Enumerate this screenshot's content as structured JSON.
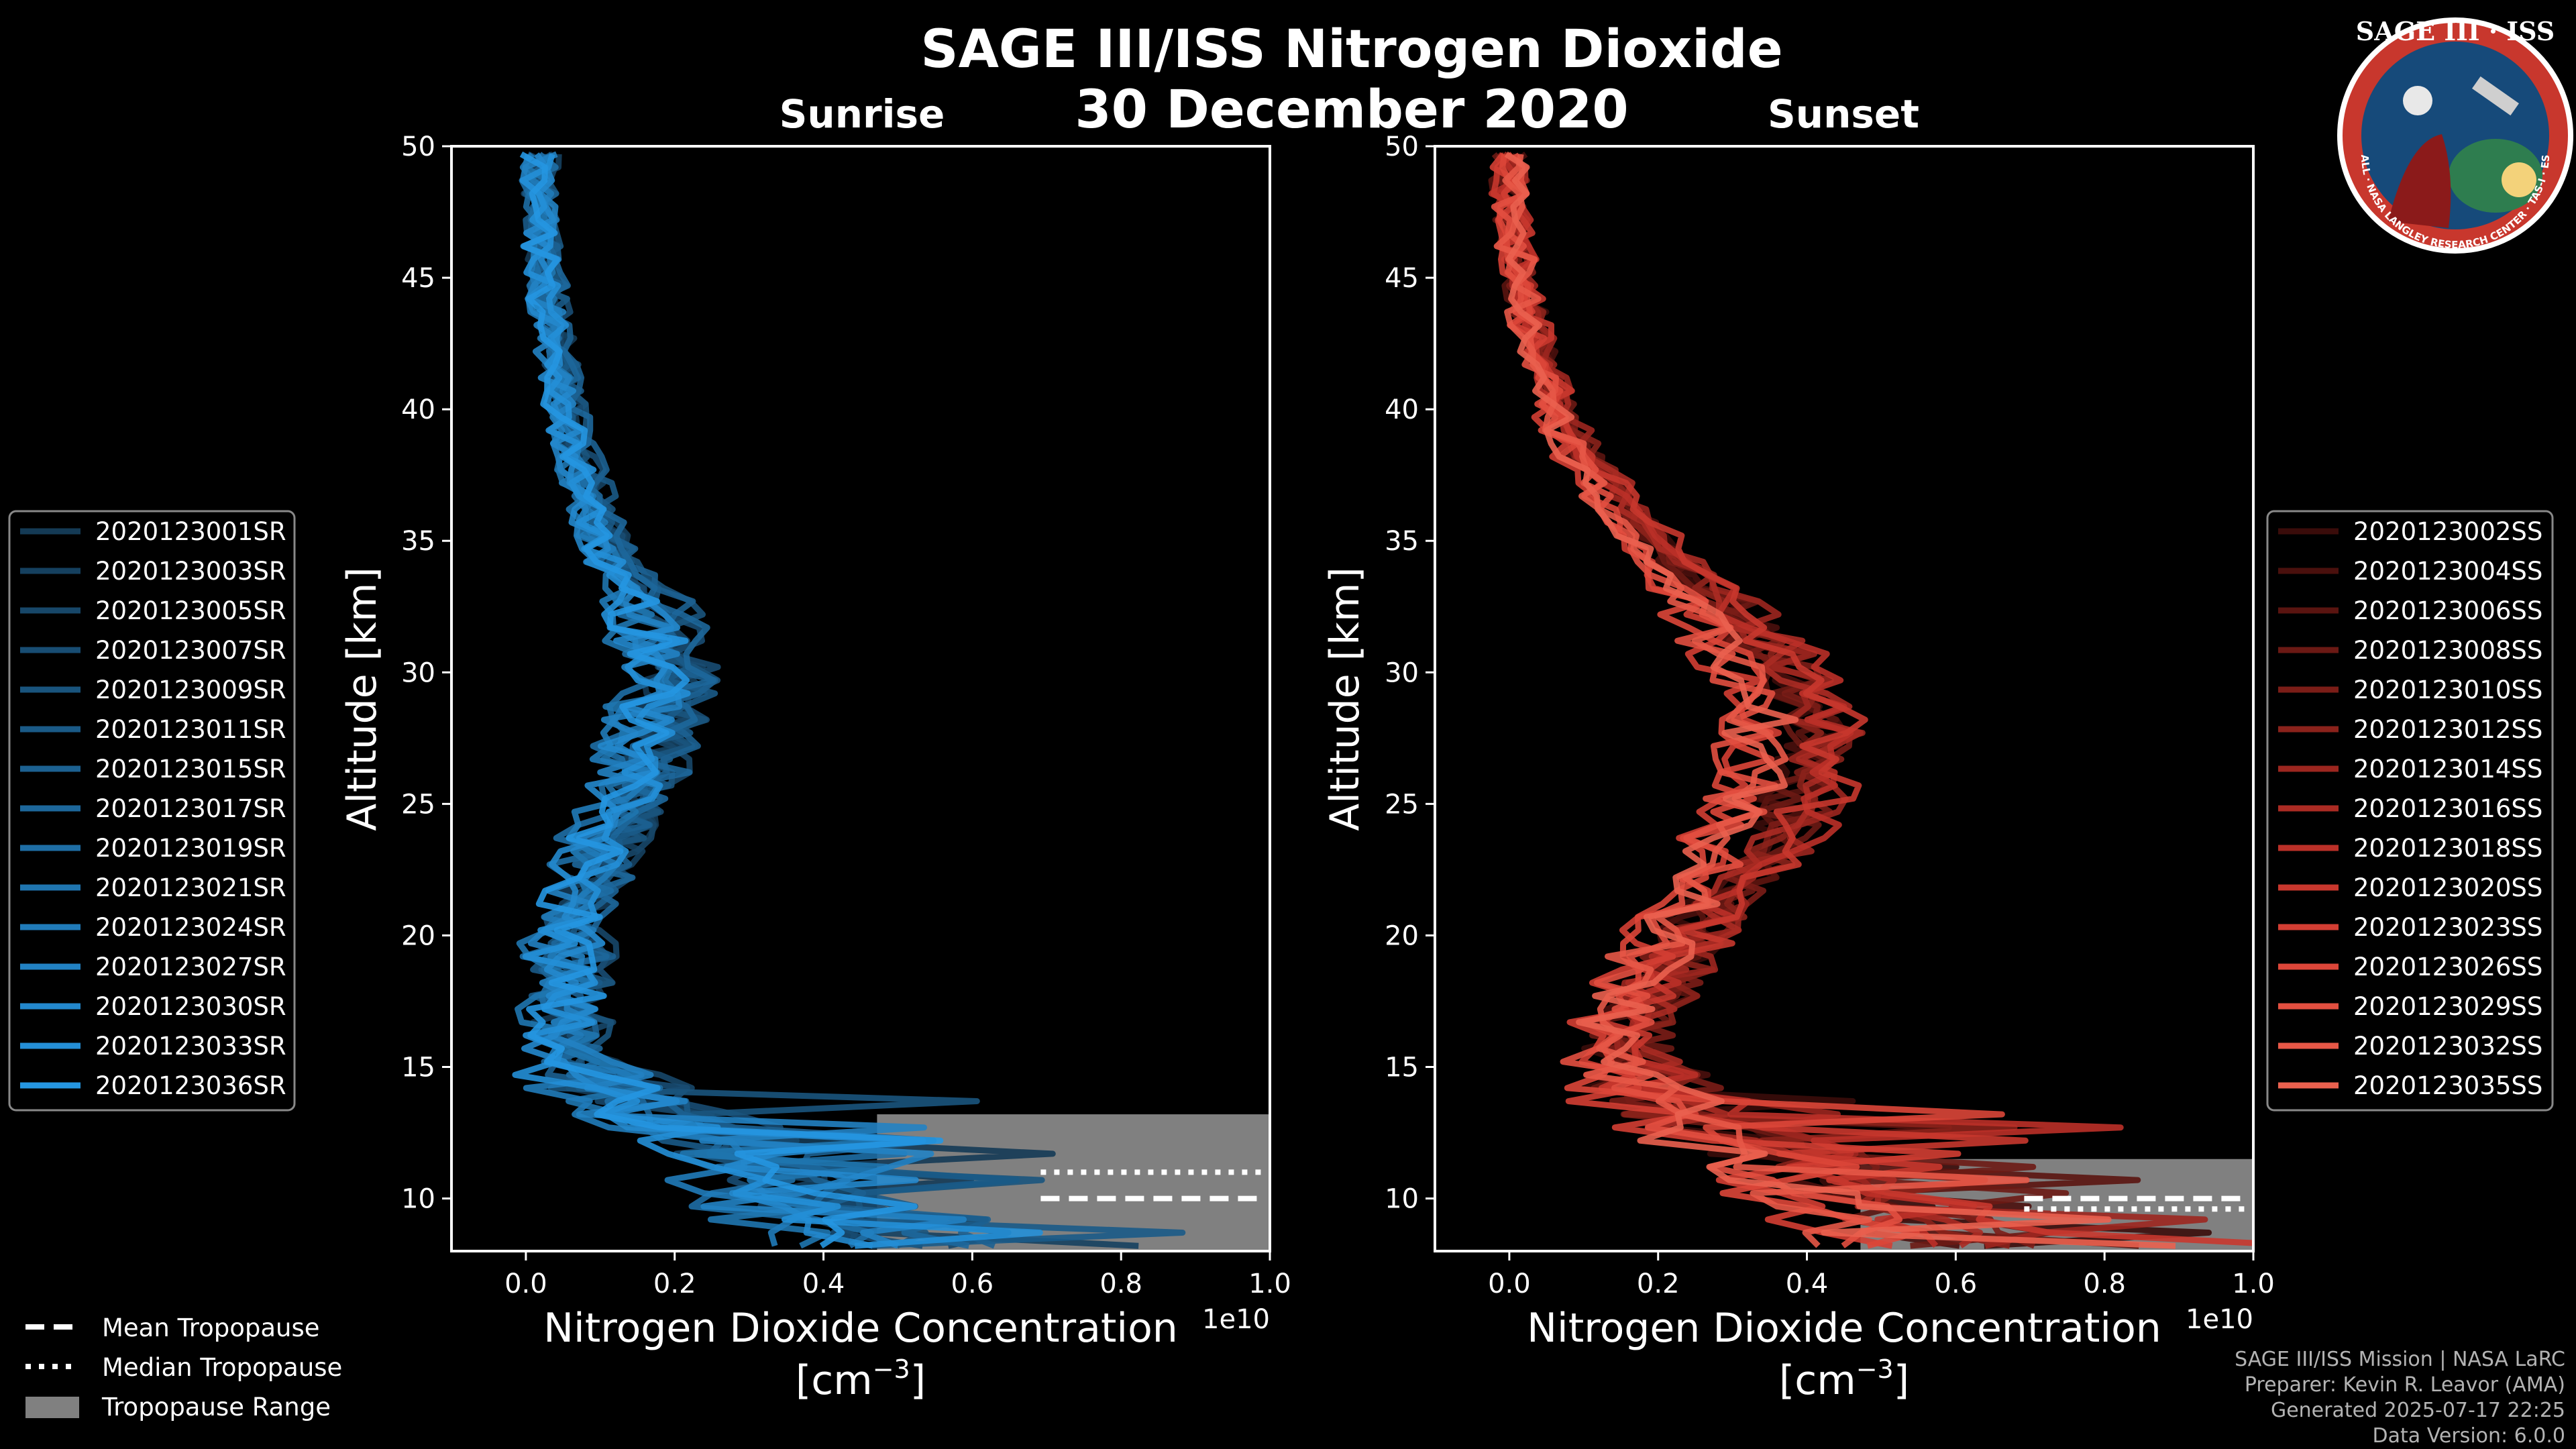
{
  "chart_data": [
    {
      "type": "line",
      "panel": "sunrise",
      "subtitle": "Sunrise",
      "xlabel": "Nitrogen Dioxide Concentration",
      "xunit": "[cm$^{-3}$]",
      "ylabel": "Altitude [km]",
      "xlim": [
        -0.1,
        1.0
      ],
      "ylim": [
        8,
        50
      ],
      "xscale_label": "1e10",
      "xticks": [
        "0.0",
        "0.2",
        "0.4",
        "0.6",
        "0.8",
        "1.0"
      ],
      "yticks": [
        "10",
        "15",
        "20",
        "25",
        "30",
        "35",
        "40",
        "45",
        "50"
      ],
      "tropopause": {
        "mean": 10.0,
        "median": 11.0,
        "range": [
          8.0,
          13.2
        ]
      },
      "legend": [
        "2020123001SR",
        "2020123003SR",
        "2020123005SR",
        "2020123007SR",
        "2020123009SR",
        "2020123011SR",
        "2020123015SR",
        "2020123017SR",
        "2020123019SR",
        "2020123021SR",
        "2020123024SR",
        "2020123027SR",
        "2020123030SR",
        "2020123033SR",
        "2020123036SR"
      ],
      "series_colors": [
        "#143a55",
        "#15405f",
        "#174769",
        "#184d73",
        "#19547d",
        "#1a5a87",
        "#1c6191",
        "#1d679b",
        "#1e6ea5",
        "#1f75af",
        "#207bb9",
        "#2282c3",
        "#2388cd",
        "#248fd7",
        "#2596e1"
      ],
      "profile": {
        "altitude": [
          8.5,
          9,
          10,
          11,
          12,
          13,
          14,
          15,
          16,
          17,
          18,
          20,
          22,
          24,
          26,
          28,
          30,
          32,
          34,
          36,
          38,
          40,
          42,
          44,
          46,
          48,
          50
        ],
        "no2": [
          0.45,
          0.4,
          0.35,
          0.3,
          0.25,
          0.2,
          0.12,
          0.07,
          0.06,
          0.05,
          0.05,
          0.06,
          0.08,
          0.11,
          0.15,
          0.17,
          0.19,
          0.17,
          0.12,
          0.09,
          0.07,
          0.05,
          0.04,
          0.03,
          0.02,
          0.02,
          0.02
        ]
      }
    },
    {
      "type": "line",
      "panel": "sunset",
      "subtitle": "Sunset",
      "xlabel": "Nitrogen Dioxide Concentration",
      "xunit": "[cm$^{-3}$]",
      "ylabel": "Altitude [km]",
      "xlim": [
        -0.1,
        1.0
      ],
      "ylim": [
        8,
        50
      ],
      "xscale_label": "1e10",
      "xticks": [
        "0.0",
        "0.2",
        "0.4",
        "0.6",
        "0.8",
        "1.0"
      ],
      "yticks": [
        "10",
        "15",
        "20",
        "25",
        "30",
        "35",
        "40",
        "45",
        "50"
      ],
      "tropopause": {
        "mean": 10.0,
        "median": 9.6,
        "range": [
          8.0,
          11.5
        ]
      },
      "legend": [
        "2020123002SS",
        "2020123004SS",
        "2020123006SS",
        "2020123008SS",
        "2020123010SS",
        "2020123012SS",
        "2020123014SS",
        "2020123016SS",
        "2020123018SS",
        "2020123020SS",
        "2020123023SS",
        "2020123026SS",
        "2020123029SS",
        "2020123032SS",
        "2020123035SS"
      ],
      "series_colors": [
        "#3a0c0a",
        "#4a100d",
        "#5a1410",
        "#6b1914",
        "#7b1d17",
        "#8b221b",
        "#9c261f",
        "#ab2b23",
        "#bb3028",
        "#c8372d",
        "#d33e33",
        "#dc4639",
        "#e24f40",
        "#e75847",
        "#ea614f"
      ],
      "profile": {
        "altitude": [
          8.5,
          9,
          10,
          11,
          12,
          13,
          14,
          15,
          16,
          17,
          18,
          20,
          22,
          24,
          26,
          28,
          30,
          32,
          34,
          36,
          38,
          40,
          42,
          44,
          46,
          48,
          50
        ],
        "no2": [
          0.55,
          0.5,
          0.45,
          0.4,
          0.3,
          0.22,
          0.18,
          0.15,
          0.14,
          0.16,
          0.18,
          0.22,
          0.28,
          0.33,
          0.36,
          0.37,
          0.34,
          0.28,
          0.21,
          0.15,
          0.1,
          0.06,
          0.04,
          0.02,
          0.01,
          0.0,
          0.0
        ]
      }
    }
  ],
  "header": {
    "title": "SAGE III/ISS Nitrogen Dioxide",
    "date": "30 December 2020"
  },
  "tropopause_legend": {
    "mean": "Mean Tropopause",
    "median": "Median Tropopause",
    "range": "Tropopause Range"
  },
  "credits": {
    "line1": "SAGE III/ISS Mission | NASA LaRC",
    "line2": "Preparer: Kevin R. Leavor (AMA)",
    "line3": "Generated 2025-07-17 22:25",
    "line4": "Data Version: 6.0.0"
  },
  "badge": {
    "title": "SAGE III · ISS",
    "subtitle": "BALL · NASA LANGLEY RESEARCH CENTER · TAS-I · ESA"
  }
}
